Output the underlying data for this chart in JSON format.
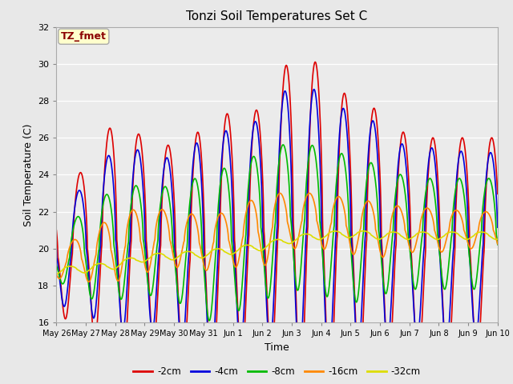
{
  "title": "Tonzi Soil Temperatures Set C",
  "xlabel": "Time",
  "ylabel": "Soil Temperature (C)",
  "ylim": [
    16,
    32
  ],
  "background_color": "#e8e8e8",
  "plot_bg": "#ebebeb",
  "annotation_text": "TZ_fmet",
  "annotation_color": "#8b0000",
  "annotation_bg": "#ffffcc",
  "annotation_border": "#aaaaaa",
  "x_tick_labels": [
    "May 26",
    "May 27",
    "May 28",
    "May 29",
    "May 30",
    "May 31",
    "Jun 1",
    "Jun 2",
    "Jun 3",
    "Jun 4",
    "Jun 5",
    "Jun 6",
    "Jun 7",
    "Jun 8",
    "Jun 9",
    "Jun 10"
  ],
  "series": [
    {
      "label": "-2cm",
      "color": "#dd0000",
      "linewidth": 1.2,
      "base_temps": [
        19.5,
        20.0,
        20.5,
        20.5,
        20.0,
        19.0,
        20.5,
        21.0,
        21.5,
        21.0,
        20.5,
        20.5,
        20.0,
        19.5,
        20.0,
        20.5
      ],
      "amplitudes": [
        3.0,
        4.5,
        6.5,
        5.5,
        5.5,
        7.5,
        7.0,
        6.5,
        9.0,
        9.0,
        7.5,
        7.0,
        6.0,
        6.5,
        6.0,
        7.0
      ],
      "phase": 0.0
    },
    {
      "label": "-4cm",
      "color": "#0000dd",
      "linewidth": 1.2,
      "base_temps": [
        19.5,
        20.0,
        20.5,
        20.5,
        20.0,
        19.5,
        20.5,
        21.0,
        21.5,
        21.0,
        20.8,
        20.8,
        20.3,
        20.0,
        20.2,
        20.5
      ],
      "amplitudes": [
        2.5,
        3.5,
        5.0,
        4.8,
        4.8,
        6.5,
        6.0,
        6.0,
        7.5,
        7.5,
        6.5,
        6.0,
        5.0,
        5.5,
        5.0,
        6.0
      ],
      "phase": 0.04
    },
    {
      "label": "-8cm",
      "color": "#00bb00",
      "linewidth": 1.2,
      "base_temps": [
        19.3,
        19.8,
        20.2,
        20.5,
        20.3,
        20.0,
        20.5,
        21.2,
        21.8,
        21.5,
        21.0,
        21.0,
        20.8,
        20.8,
        20.8,
        21.0
      ],
      "amplitudes": [
        1.0,
        2.5,
        3.0,
        3.0,
        3.0,
        4.0,
        4.0,
        4.0,
        4.0,
        4.0,
        4.0,
        3.5,
        3.0,
        3.0,
        3.0,
        3.0
      ],
      "phase": 0.1
    },
    {
      "label": "-16cm",
      "color": "#ff8800",
      "linewidth": 1.2,
      "base_temps": [
        19.2,
        19.5,
        20.0,
        20.5,
        20.5,
        20.3,
        20.5,
        21.0,
        21.5,
        21.5,
        21.2,
        21.0,
        21.0,
        21.0,
        21.0,
        21.0
      ],
      "amplitudes": [
        0.8,
        1.3,
        1.8,
        1.8,
        1.5,
        1.5,
        1.5,
        2.0,
        1.5,
        1.5,
        1.5,
        1.5,
        1.2,
        1.2,
        1.0,
        1.0
      ],
      "phase": 0.2
    },
    {
      "label": "-32cm",
      "color": "#dddd00",
      "linewidth": 1.2,
      "base_temps": [
        18.8,
        18.9,
        19.1,
        19.5,
        19.6,
        19.7,
        19.9,
        20.1,
        20.5,
        20.7,
        20.8,
        20.7,
        20.7,
        20.7,
        20.7,
        20.5
      ],
      "amplitudes": [
        0.2,
        0.2,
        0.2,
        0.2,
        0.2,
        0.2,
        0.2,
        0.2,
        0.2,
        0.2,
        0.2,
        0.2,
        0.2,
        0.2,
        0.2,
        0.2
      ],
      "phase": 0.35
    }
  ]
}
